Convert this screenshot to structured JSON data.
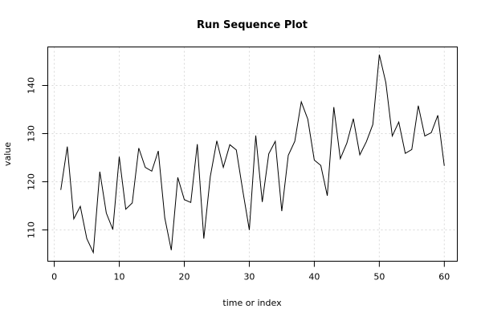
{
  "chart_data": {
    "type": "line",
    "title": "Run Sequence Plot",
    "xlabel": "time or index",
    "ylabel": "value",
    "xlim": [
      -1,
      62
    ],
    "ylim": [
      103.5,
      148.0
    ],
    "grid": true,
    "x_ticks": [
      0,
      10,
      20,
      30,
      40,
      50,
      60
    ],
    "y_ticks": [
      110,
      120,
      130,
      140
    ],
    "x": [
      1,
      2,
      3,
      4,
      5,
      6,
      7,
      8,
      9,
      10,
      11,
      12,
      13,
      14,
      15,
      16,
      17,
      18,
      19,
      20,
      21,
      22,
      23,
      24,
      25,
      26,
      27,
      28,
      29,
      30,
      31,
      32,
      33,
      34,
      35,
      36,
      37,
      38,
      39,
      40,
      41,
      42,
      43,
      44,
      45,
      46,
      47,
      48,
      49,
      50,
      51,
      52,
      53,
      54,
      55,
      56,
      57,
      58,
      59,
      60
    ],
    "values": [
      118.3,
      127.3,
      112.3,
      114.9,
      108.2,
      105.3,
      122.1,
      113.5,
      110.1,
      125.2,
      114.3,
      115.6,
      127.0,
      123.0,
      122.2,
      126.4,
      112.5,
      105.8,
      120.9,
      116.3,
      115.7,
      127.8,
      108.2,
      121.1,
      128.5,
      123.0,
      127.7,
      126.6,
      118.1,
      110.0,
      129.6,
      115.8,
      125.8,
      128.4,
      113.9,
      125.5,
      128.4,
      136.6,
      133.0,
      124.5,
      123.4,
      117.1,
      135.5,
      124.8,
      128.0,
      133.1,
      125.6,
      128.3,
      131.9,
      146.4,
      140.6,
      129.5,
      132.4,
      125.9,
      126.7,
      135.8,
      129.5,
      130.2,
      133.8,
      123.3
    ]
  }
}
